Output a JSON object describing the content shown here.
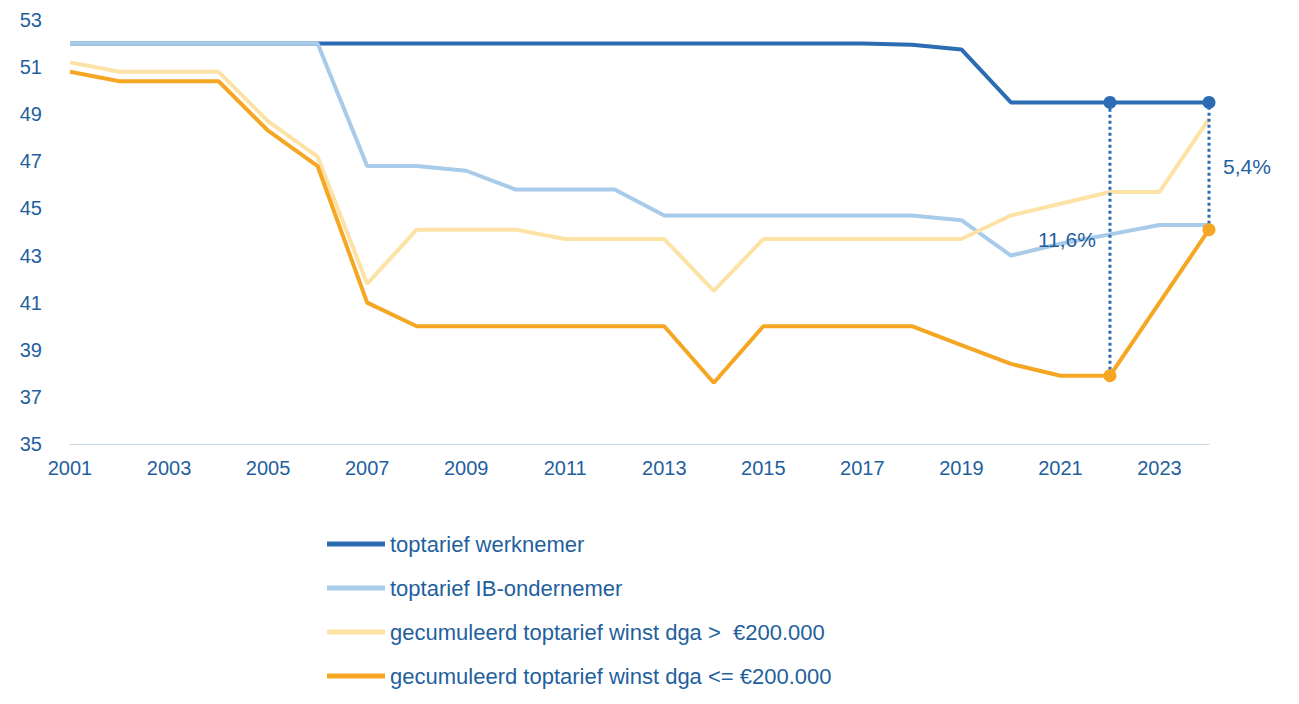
{
  "chart_data": {
    "type": "line",
    "x": [
      2001,
      2002,
      2003,
      2004,
      2005,
      2006,
      2007,
      2008,
      2009,
      2010,
      2011,
      2012,
      2013,
      2014,
      2015,
      2016,
      2017,
      2018,
      2019,
      2020,
      2021,
      2022,
      2023,
      2024
    ],
    "series": [
      {
        "name": "toptarief werknemer",
        "color": "#2b6cb3",
        "values": [
          52,
          52,
          52,
          52,
          52,
          52,
          52,
          52,
          52,
          52,
          52,
          52,
          52,
          52,
          52,
          52,
          52,
          51.95,
          51.75,
          49.5,
          49.5,
          49.5,
          49.5,
          49.5
        ]
      },
      {
        "name": "toptarief IB-ondernemer",
        "color": "#a8cbe9",
        "values": [
          52,
          52,
          52,
          52,
          52,
          52,
          46.8,
          46.8,
          46.6,
          45.8,
          45.8,
          45.8,
          44.7,
          44.7,
          44.7,
          44.7,
          44.7,
          44.7,
          44.5,
          43.0,
          43.5,
          43.9,
          44.3,
          44.3
        ]
      },
      {
        "name": "gecumuleerd toptarief winst dga >  €200.000",
        "color": "#fde2a6",
        "values": [
          51.2,
          50.8,
          50.8,
          50.8,
          48.7,
          47.2,
          41.8,
          44.1,
          44.1,
          44.1,
          43.7,
          43.7,
          43.7,
          41.5,
          43.7,
          43.7,
          43.7,
          43.7,
          43.7,
          44.7,
          45.2,
          45.7,
          45.7,
          48.8
        ]
      },
      {
        "name": "gecumuleerd toptarief winst dga <= €200.000",
        "color": "#f5a623",
        "values": [
          50.8,
          50.4,
          50.4,
          50.4,
          48.3,
          46.8,
          41.0,
          40.0,
          40.0,
          40.0,
          40.0,
          40.0,
          40.0,
          37.6,
          40.0,
          40.0,
          40.0,
          40.0,
          39.2,
          38.4,
          37.9,
          37.9,
          41.0,
          44.1
        ]
      }
    ],
    "annotations": [
      {
        "x": 2022,
        "label": "11,6%",
        "from_series": "gecumuleerd toptarief winst dga <= €200.000",
        "to_series": "toptarief werknemer"
      },
      {
        "x": 2024,
        "label": "5,4%",
        "from_series": "gecumuleerd toptarief winst dga <= €200.000",
        "to_series": "toptarief werknemer"
      }
    ],
    "xlim": [
      2001,
      2024
    ],
    "xticks": [
      2001,
      2003,
      2005,
      2007,
      2009,
      2011,
      2013,
      2015,
      2017,
      2019,
      2021,
      2023
    ],
    "ylim": [
      35,
      53
    ],
    "yticks": [
      35,
      37,
      39,
      41,
      43,
      45,
      47,
      49,
      51,
      53
    ],
    "grid": false,
    "legend": "bottom"
  }
}
